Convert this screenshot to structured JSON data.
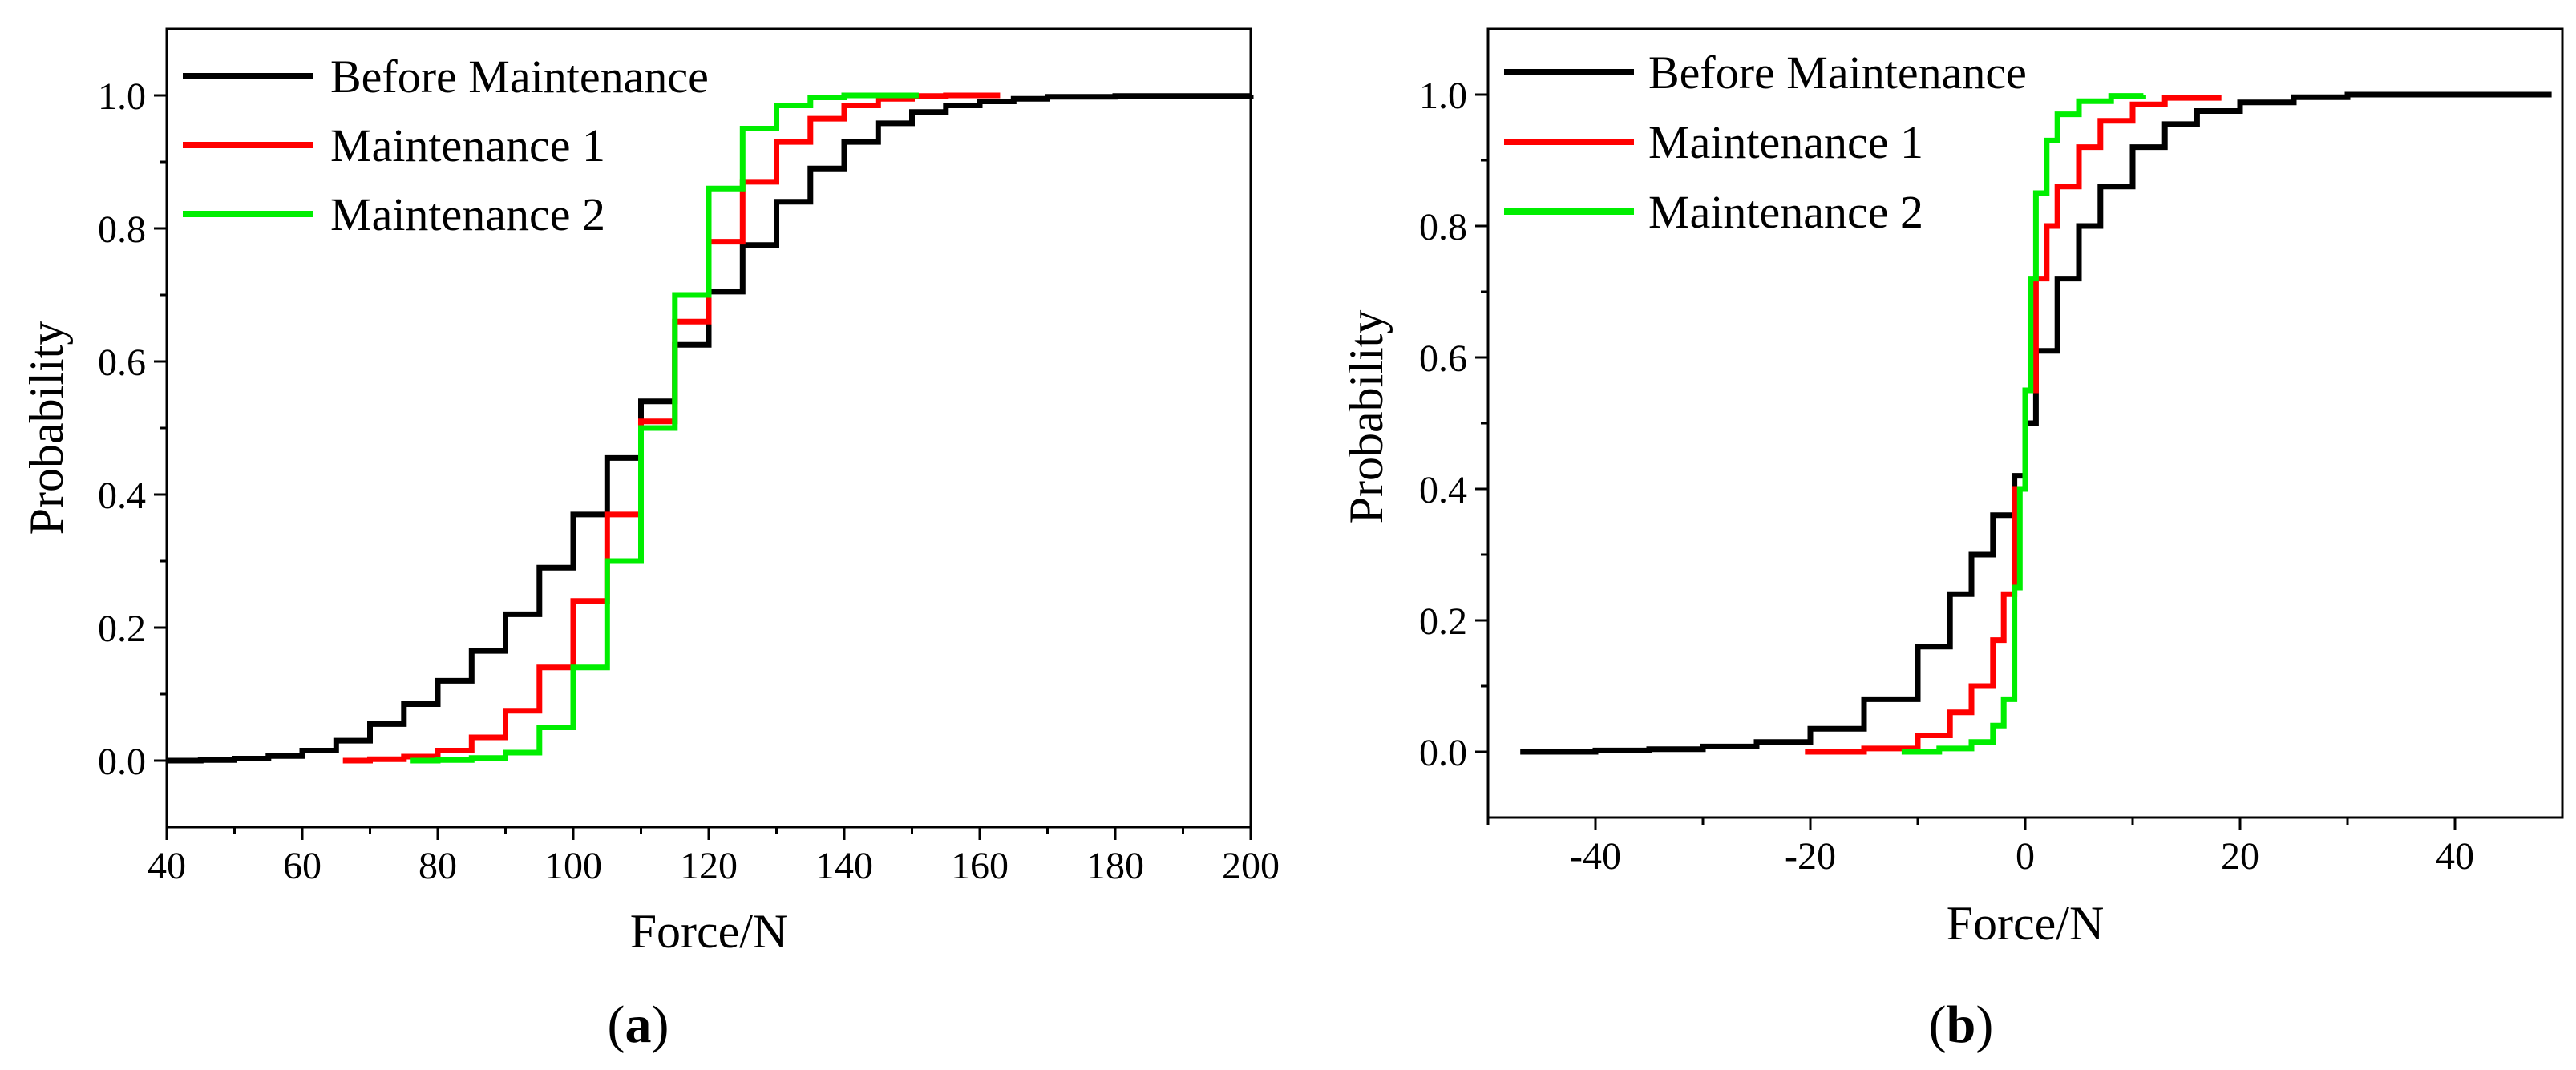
{
  "chart_data": [
    {
      "panel": "a",
      "panel_label": "a",
      "type": "line",
      "step": true,
      "xlabel": "Force/N",
      "ylabel": "Probability",
      "xlim": [
        40,
        200
      ],
      "ylim": [
        -0.1,
        1.1
      ],
      "xticks": [
        40,
        60,
        80,
        100,
        120,
        140,
        160,
        180,
        200
      ],
      "xtick_labels": [
        "40",
        "60",
        "80",
        "100",
        "120",
        "140",
        "160",
        "180",
        "200"
      ],
      "yticks": [
        0.0,
        0.2,
        0.4,
        0.6,
        0.8,
        1.0
      ],
      "ytick_labels": [
        "0.0",
        "0.2",
        "0.4",
        "0.6",
        "0.8",
        "1.0"
      ],
      "legend_position": "top-left",
      "series": [
        {
          "name": "Before Maintenance",
          "color": "#000000",
          "points": [
            [
              40,
              0.0
            ],
            [
              45,
              0.001
            ],
            [
              50,
              0.003
            ],
            [
              55,
              0.007
            ],
            [
              60,
              0.015
            ],
            [
              65,
              0.03
            ],
            [
              70,
              0.055
            ],
            [
              75,
              0.085
            ],
            [
              80,
              0.12
            ],
            [
              85,
              0.165
            ],
            [
              90,
              0.22
            ],
            [
              95,
              0.29
            ],
            [
              100,
              0.37
            ],
            [
              105,
              0.455
            ],
            [
              110,
              0.54
            ],
            [
              115,
              0.625
            ],
            [
              120,
              0.705
            ],
            [
              125,
              0.775
            ],
            [
              130,
              0.84
            ],
            [
              135,
              0.89
            ],
            [
              140,
              0.93
            ],
            [
              145,
              0.958
            ],
            [
              150,
              0.975
            ],
            [
              155,
              0.985
            ],
            [
              160,
              0.991
            ],
            [
              165,
              0.995
            ],
            [
              170,
              0.998
            ],
            [
              180,
              0.999
            ],
            [
              200,
              1.0
            ]
          ]
        },
        {
          "name": "Maintenance 1",
          "color": "#ff0000",
          "points": [
            [
              66,
              0.0
            ],
            [
              70,
              0.002
            ],
            [
              75,
              0.006
            ],
            [
              80,
              0.015
            ],
            [
              85,
              0.035
            ],
            [
              90,
              0.075
            ],
            [
              95,
              0.14
            ],
            [
              100,
              0.24
            ],
            [
              105,
              0.37
            ],
            [
              110,
              0.51
            ],
            [
              115,
              0.66
            ],
            [
              120,
              0.78
            ],
            [
              125,
              0.87
            ],
            [
              130,
              0.93
            ],
            [
              135,
              0.965
            ],
            [
              140,
              0.985
            ],
            [
              145,
              0.995
            ],
            [
              150,
              0.999
            ],
            [
              155,
              1.0
            ],
            [
              163,
              1.0
            ]
          ]
        },
        {
          "name": "Maintenance 2",
          "color": "#00ee00",
          "points": [
            [
              76,
              0.0
            ],
            [
              80,
              0.001
            ],
            [
              85,
              0.004
            ],
            [
              90,
              0.012
            ],
            [
              95,
              0.05
            ],
            [
              100,
              0.14
            ],
            [
              105,
              0.3
            ],
            [
              110,
              0.5
            ],
            [
              115,
              0.7
            ],
            [
              120,
              0.86
            ],
            [
              125,
              0.95
            ],
            [
              130,
              0.985
            ],
            [
              135,
              0.997
            ],
            [
              140,
              1.0
            ],
            [
              151,
              1.0
            ]
          ]
        }
      ]
    },
    {
      "panel": "b",
      "panel_label": "b",
      "type": "line",
      "step": true,
      "xlabel": "Force/N",
      "ylabel": "Probability",
      "xlim": [
        -50,
        50
      ],
      "ylim": [
        -0.1,
        1.1
      ],
      "xticks": [
        -40,
        -20,
        0,
        20,
        40
      ],
      "xtick_labels": [
        "-40",
        "-20",
        "0",
        "20",
        "40"
      ],
      "yticks": [
        0.0,
        0.2,
        0.4,
        0.6,
        0.8,
        1.0
      ],
      "ytick_labels": [
        "0.0",
        "0.2",
        "0.4",
        "0.6",
        "0.8",
        "1.0"
      ],
      "legend_position": "top-left",
      "series": [
        {
          "name": "Before Maintenance",
          "color": "#000000",
          "points": [
            [
              -47,
              0.0
            ],
            [
              -40,
              0.002
            ],
            [
              -35,
              0.004
            ],
            [
              -30,
              0.008
            ],
            [
              -25,
              0.015
            ],
            [
              -20,
              0.035
            ],
            [
              -15,
              0.08
            ],
            [
              -10,
              0.16
            ],
            [
              -7,
              0.24
            ],
            [
              -5,
              0.3
            ],
            [
              -3,
              0.36
            ],
            [
              -1,
              0.42
            ],
            [
              0,
              0.5
            ],
            [
              1,
              0.61
            ],
            [
              3,
              0.72
            ],
            [
              5,
              0.8
            ],
            [
              7,
              0.86
            ],
            [
              10,
              0.92
            ],
            [
              13,
              0.955
            ],
            [
              16,
              0.975
            ],
            [
              20,
              0.988
            ],
            [
              25,
              0.996
            ],
            [
              30,
              1.0
            ],
            [
              49,
              1.0
            ]
          ]
        },
        {
          "name": "Maintenance 1",
          "color": "#ff0000",
          "points": [
            [
              -20.5,
              0.0
            ],
            [
              -15,
              0.005
            ],
            [
              -10,
              0.025
            ],
            [
              -7,
              0.06
            ],
            [
              -5,
              0.1
            ],
            [
              -3,
              0.17
            ],
            [
              -2,
              0.24
            ],
            [
              -1,
              0.4
            ],
            [
              0,
              0.55
            ],
            [
              1,
              0.72
            ],
            [
              2,
              0.8
            ],
            [
              3,
              0.86
            ],
            [
              5,
              0.92
            ],
            [
              7,
              0.96
            ],
            [
              10,
              0.985
            ],
            [
              13,
              0.995
            ],
            [
              18,
              1.0
            ]
          ]
        },
        {
          "name": "Maintenance 2",
          "color": "#00ee00",
          "points": [
            [
              -11.5,
              0.0
            ],
            [
              -8,
              0.005
            ],
            [
              -5,
              0.015
            ],
            [
              -3,
              0.04
            ],
            [
              -2,
              0.08
            ],
            [
              -1,
              0.25
            ],
            [
              -0.5,
              0.4
            ],
            [
              0,
              0.55
            ],
            [
              0.5,
              0.72
            ],
            [
              1,
              0.85
            ],
            [
              2,
              0.93
            ],
            [
              3,
              0.97
            ],
            [
              5,
              0.99
            ],
            [
              8,
              0.998
            ],
            [
              11,
              1.0
            ]
          ]
        }
      ]
    }
  ]
}
